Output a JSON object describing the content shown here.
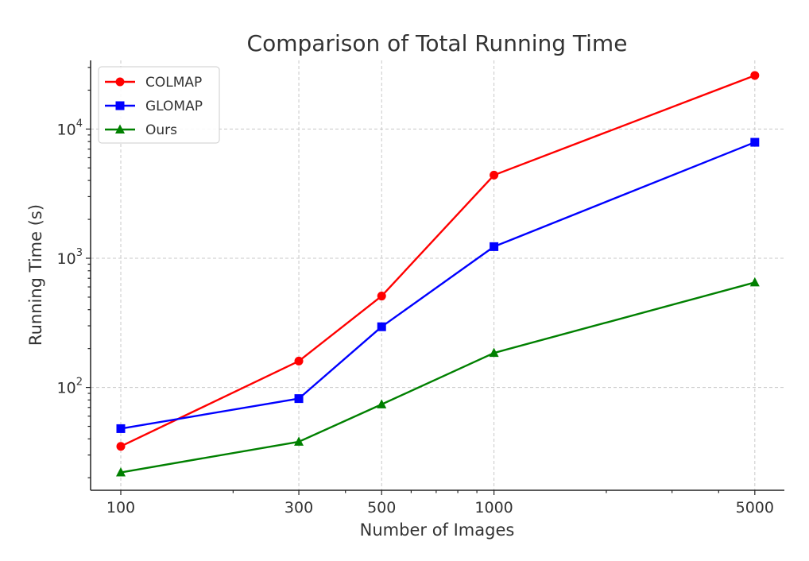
{
  "chart_data": {
    "type": "line",
    "title": "Comparison of Total Running Time",
    "xlabel": "Number of Images",
    "ylabel": "Running Time (s)",
    "xscale": "log",
    "yscale": "log",
    "xlim": [
      83,
      6000
    ],
    "ylim": [
      16,
      34000
    ],
    "x": [
      100,
      300,
      500,
      1000,
      5000
    ],
    "xticks": [
      "100",
      "300",
      "500",
      "1000",
      "5000"
    ],
    "yticks": [
      {
        "base": "10",
        "exp": "2",
        "value": 100
      },
      {
        "base": "10",
        "exp": "3",
        "value": 1000
      },
      {
        "base": "10",
        "exp": "4",
        "value": 10000
      }
    ],
    "grid": true,
    "legend_position": "top-left",
    "series": [
      {
        "name": "COLMAP",
        "color": "#ff0000",
        "marker": "circle",
        "values": [
          35,
          160,
          510,
          4400,
          26000
        ]
      },
      {
        "name": "GLOMAP",
        "color": "#0000ff",
        "marker": "square",
        "values": [
          48,
          82,
          295,
          1230,
          7900
        ]
      },
      {
        "name": "Ours",
        "color": "#008000",
        "marker": "triangle",
        "values": [
          22,
          38,
          74,
          185,
          650
        ]
      }
    ]
  }
}
